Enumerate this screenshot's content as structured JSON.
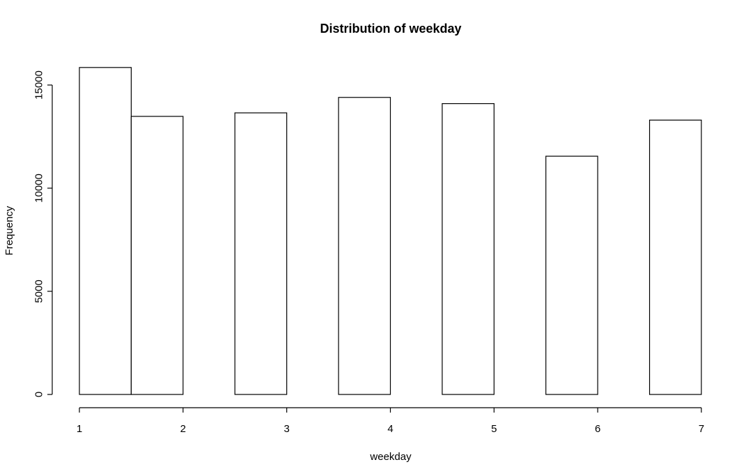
{
  "chart_data": {
    "type": "bar",
    "title": "Distribution of weekday",
    "xlabel": "weekday",
    "ylabel": "Frequency",
    "bins": [
      {
        "start": 1.0,
        "end": 1.5,
        "count": 15850
      },
      {
        "start": 1.5,
        "end": 2.0,
        "count": 13480
      },
      {
        "start": 2.0,
        "end": 2.5,
        "count": 0
      },
      {
        "start": 2.5,
        "end": 3.0,
        "count": 13650
      },
      {
        "start": 3.0,
        "end": 3.5,
        "count": 0
      },
      {
        "start": 3.5,
        "end": 4.0,
        "count": 14400
      },
      {
        "start": 4.0,
        "end": 4.5,
        "count": 0
      },
      {
        "start": 4.5,
        "end": 5.0,
        "count": 14100
      },
      {
        "start": 5.0,
        "end": 5.5,
        "count": 0
      },
      {
        "start": 5.5,
        "end": 6.0,
        "count": 11550
      },
      {
        "start": 6.0,
        "end": 6.5,
        "count": 0
      },
      {
        "start": 6.5,
        "end": 7.0,
        "count": 13300
      }
    ],
    "xlim": [
      1,
      7
    ],
    "ylim": [
      0,
      15850
    ],
    "x_ticks": [
      1,
      2,
      3,
      4,
      5,
      6,
      7
    ],
    "y_ticks": [
      0,
      5000,
      10000,
      15000
    ],
    "grid": false,
    "legend": "none"
  }
}
